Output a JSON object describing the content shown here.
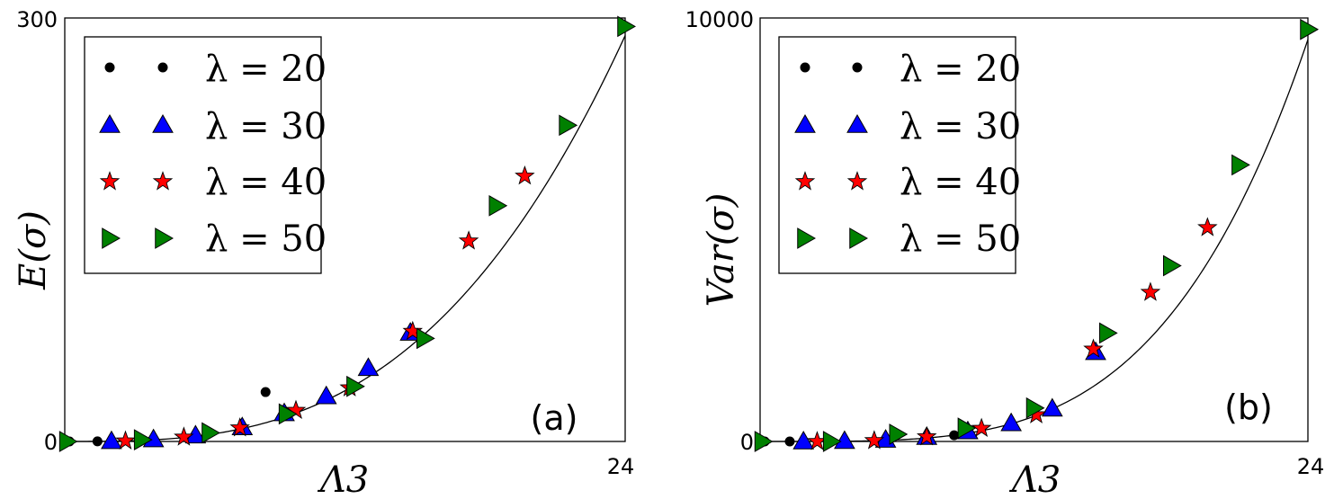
{
  "series_styles": {
    "lambda_20": {
      "marker": "circle",
      "color": "#000000"
    },
    "lambda_30": {
      "marker": "triangle-up",
      "color": "#0000ff"
    },
    "lambda_40": {
      "marker": "star",
      "color": "#ff0000"
    },
    "lambda_50": {
      "marker": "triangle-right",
      "color": "#008000"
    }
  },
  "chart_data": [
    {
      "type": "scatter",
      "panel_label": "(a)",
      "xlabel": "Λ3",
      "ylabel": "E(σ)",
      "xlim": [
        0,
        24
      ],
      "ylim": [
        0,
        300
      ],
      "x_ticks": [
        "24"
      ],
      "y_ticks": [
        "0",
        "300"
      ],
      "legend_position": "top-left",
      "curve": {
        "form": "power",
        "a": 0.0208,
        "p": 3
      },
      "series": [
        {
          "name": "λ = 20",
          "style": "lambda_20",
          "x": [
            0.2,
            1.4,
            8.6
          ],
          "y": [
            0,
            0.1,
            35
          ]
        },
        {
          "name": "λ = 30",
          "style": "lambda_30",
          "x": [
            2.0,
            3.8,
            5.6,
            7.6,
            9.4,
            11.2,
            13.0,
            14.8
          ],
          "y": [
            0.2,
            1.5,
            4.2,
            10,
            20,
            32,
            52,
            77
          ]
        },
        {
          "name": "λ = 40",
          "style": "lambda_40",
          "x": [
            2.6,
            5.1,
            7.5,
            9.9,
            12.2,
            14.9,
            17.3,
            19.7
          ],
          "y": [
            0.4,
            3.1,
            9.6,
            22,
            38,
            78,
            142,
            188
          ]
        },
        {
          "name": "λ = 50",
          "style": "lambda_50",
          "x": [
            0.1,
            3.3,
            6.2,
            9.5,
            12.4,
            15.4,
            18.5,
            21.5,
            24.0
          ],
          "y": [
            0,
            1.2,
            6.1,
            19.5,
            39,
            73,
            167,
            224,
            294
          ]
        }
      ]
    },
    {
      "type": "scatter",
      "panel_label": "(b)",
      "xlabel": "Λ3",
      "ylabel": "Var(σ)",
      "xlim": [
        0,
        24
      ],
      "ylim": [
        0,
        10000
      ],
      "x_ticks": [
        "24"
      ],
      "y_ticks": [
        "0",
        "10000"
      ],
      "legend_position": "top-left",
      "curve": {
        "form": "power",
        "a": 0.0286,
        "p": 4
      },
      "series": [
        {
          "name": "λ = 20",
          "style": "lambda_20",
          "x": [
            0.2,
            1.3,
            8.5
          ],
          "y": [
            0,
            0,
            145
          ]
        },
        {
          "name": "λ = 30",
          "style": "lambda_30",
          "x": [
            1.9,
            3.7,
            5.5,
            7.3,
            9.1,
            11.0,
            12.8,
            14.7
          ],
          "y": [
            0,
            10,
            40,
            105,
            240,
            430,
            775,
            2110
          ]
        },
        {
          "name": "λ = 40",
          "style": "lambda_40",
          "x": [
            2.5,
            5.0,
            7.3,
            9.7,
            12.1,
            14.6,
            17.1,
            19.6
          ],
          "y": [
            0,
            20,
            110,
            310,
            630,
            2180,
            3520,
            5050
          ]
        },
        {
          "name": "λ = 50",
          "style": "lambda_50",
          "x": [
            0.1,
            3.1,
            6.0,
            9.0,
            12.0,
            15.2,
            18.0,
            21.0,
            24.0
          ],
          "y": [
            0,
            0,
            170,
            315,
            790,
            2560,
            4150,
            6530,
            9730
          ]
        }
      ]
    }
  ]
}
